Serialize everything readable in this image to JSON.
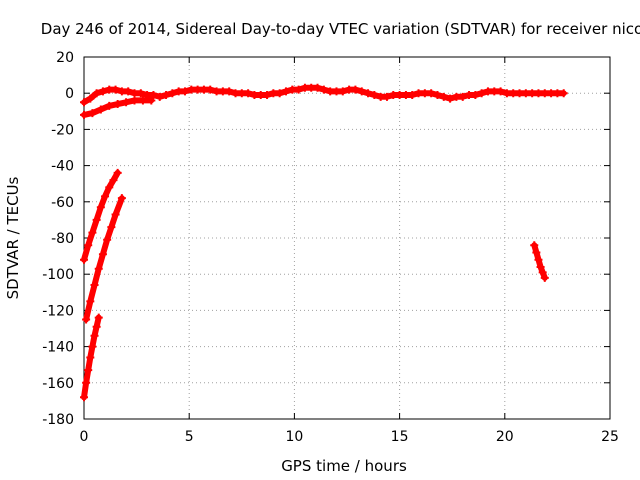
{
  "chart_data": {
    "type": "scatter",
    "title": "Day 246 of 2014, Sidereal Day-to-day VTEC variation (SDTVAR) for receiver nico",
    "xlabel": "GPS time / hours",
    "ylabel": "SDTVAR / TECUs",
    "xlim": [
      0,
      25
    ],
    "ylim": [
      -180,
      20
    ],
    "xticks": [
      0,
      5,
      10,
      15,
      20,
      25
    ],
    "yticks": [
      -180,
      -160,
      -140,
      -120,
      -100,
      -80,
      -60,
      -40,
      -20,
      0,
      20
    ],
    "grid": true,
    "point_color": "#ff0000",
    "series": [
      {
        "x": [
          0.0,
          0.3,
          0.6,
          0.9,
          1.2,
          1.5,
          1.8,
          2.1,
          2.4,
          2.7,
          3.0,
          3.3,
          3.6,
          3.9,
          4.2,
          4.5,
          4.8,
          5.1,
          5.4,
          5.7,
          6.0,
          6.3,
          6.6,
          6.9,
          7.2,
          7.5,
          7.8,
          8.1,
          8.4,
          8.7,
          9.0,
          9.3,
          9.6,
          9.9,
          10.2,
          10.5,
          10.8,
          11.1,
          11.4,
          11.7,
          12.0,
          12.3,
          12.6,
          12.9,
          13.2,
          13.5,
          13.8,
          14.1,
          14.4,
          14.7,
          15.0,
          15.3,
          15.6,
          15.9,
          16.2,
          16.5,
          16.8,
          17.1,
          17.4,
          17.7,
          18.0,
          18.3,
          18.6,
          18.9,
          19.2,
          19.5,
          19.8,
          20.1,
          20.4,
          20.7,
          21.0,
          21.3,
          21.6,
          21.9,
          22.2,
          22.5,
          22.8
        ],
        "y": [
          -5,
          -3,
          0,
          1,
          2,
          2,
          1,
          1,
          0,
          0,
          -1,
          -1,
          -2,
          -1,
          0,
          1,
          1,
          2,
          2,
          2,
          2,
          1,
          1,
          1,
          0,
          0,
          0,
          -1,
          -1,
          -1,
          0,
          0,
          1,
          2,
          2,
          3,
          3,
          3,
          2,
          1,
          1,
          1,
          2,
          2,
          1,
          0,
          -1,
          -2,
          -2,
          -1,
          -1,
          -1,
          -1,
          0,
          0,
          0,
          -1,
          -2,
          -3,
          -2,
          -2,
          -1,
          -1,
          0,
          1,
          1,
          1,
          0,
          0,
          0,
          0,
          0,
          0,
          0,
          0,
          0,
          0
        ]
      },
      {
        "x": [
          0.0,
          0.4,
          0.8,
          1.2,
          1.6,
          2.0,
          2.4,
          2.8,
          3.2
        ],
        "y": [
          -12,
          -11,
          -9,
          -7,
          -6,
          -5,
          -4,
          -4,
          -4
        ]
      },
      {
        "x": [
          0.0,
          0.2,
          0.4,
          0.6,
          0.8,
          1.0,
          1.2,
          1.4,
          1.6
        ],
        "y": [
          -92,
          -84,
          -77,
          -70,
          -63,
          -57,
          -52,
          -48,
          -44
        ]
      },
      {
        "x": [
          0.1,
          0.3,
          0.5,
          0.7,
          0.9,
          1.1,
          1.3,
          1.5,
          1.8
        ],
        "y": [
          -125,
          -115,
          -106,
          -97,
          -89,
          -81,
          -74,
          -67,
          -58
        ]
      },
      {
        "x": [
          0.0,
          0.1,
          0.2,
          0.3,
          0.4,
          0.5,
          0.6,
          0.7
        ],
        "y": [
          -168,
          -160,
          -153,
          -146,
          -140,
          -134,
          -129,
          -124
        ]
      },
      {
        "x": [
          21.4,
          21.5,
          21.6,
          21.7,
          21.8,
          21.9
        ],
        "y": [
          -84,
          -88,
          -92,
          -96,
          -99,
          -102
        ]
      }
    ]
  }
}
